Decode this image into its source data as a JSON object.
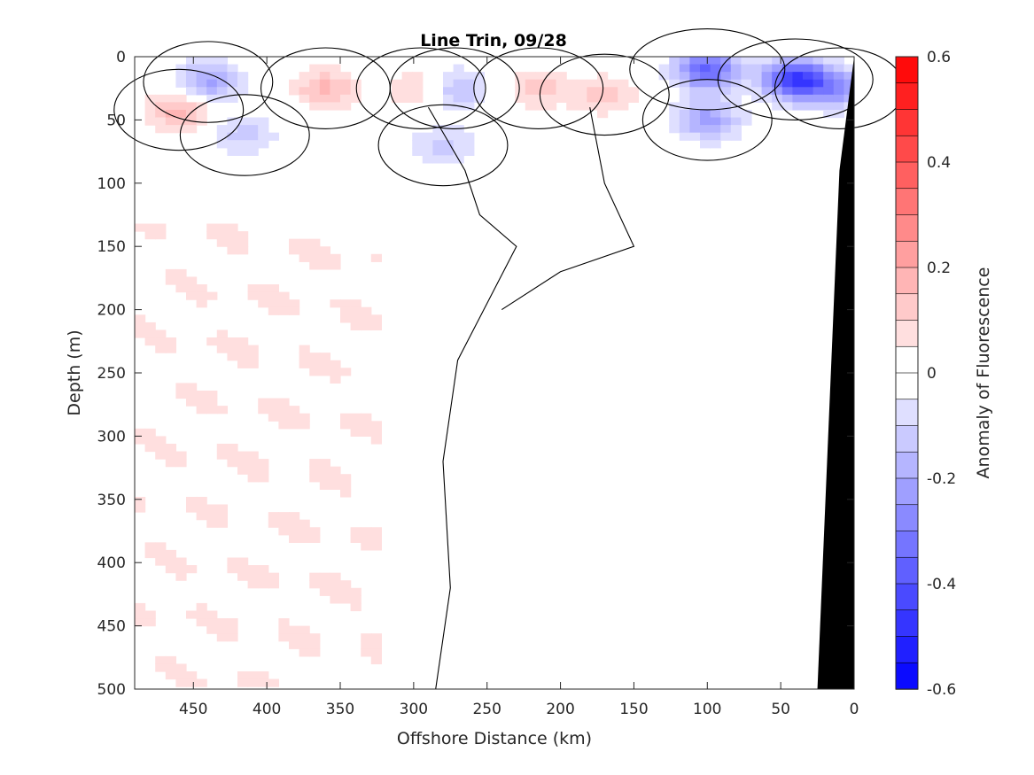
{
  "chart_data": {
    "type": "heatmap",
    "subtype": "filled-contour section",
    "title": "Line Trin, 09/28",
    "xlabel": "Offshore Distance (km)",
    "ylabel": "Depth (m)",
    "colorbar_label": "Anomaly of Fluorescence",
    "xlim": [
      490,
      0
    ],
    "ylim": [
      500,
      0
    ],
    "x_reversed": true,
    "y_reversed": true,
    "x_ticks": [
      "450",
      "400",
      "350",
      "300",
      "250",
      "200",
      "150",
      "100",
      "50",
      "0"
    ],
    "y_ticks": [
      "0",
      "50",
      "100",
      "150",
      "200",
      "250",
      "300",
      "350",
      "400",
      "450",
      "500"
    ],
    "colorbar_range": [
      -0.6,
      0.6
    ],
    "colorbar_ticks": [
      "0.6",
      "0.4",
      "0.2",
      "0",
      "-0.2",
      "-0.4",
      "-0.6"
    ],
    "colorbar_levels": 24,
    "colors": {
      "positive": "#ff0000",
      "negative": "#0000ff",
      "zero": "#ffffff",
      "bathymetry": "#000000",
      "contour": "#000000"
    },
    "grid": false,
    "contour_level": 0,
    "features": [
      {
        "x": 440,
        "y": 20,
        "value": -0.22
      },
      {
        "x": 360,
        "y": 25,
        "value": 0.16
      },
      {
        "x": 460,
        "y": 42,
        "value": 0.18
      },
      {
        "x": 415,
        "y": 62,
        "value": -0.12
      },
      {
        "x": 295,
        "y": 25,
        "value": 0.14
      },
      {
        "x": 272,
        "y": 25,
        "value": -0.18
      },
      {
        "x": 280,
        "y": 70,
        "value": -0.12
      },
      {
        "x": 215,
        "y": 25,
        "value": 0.12
      },
      {
        "x": 170,
        "y": 30,
        "value": 0.12
      },
      {
        "x": 100,
        "y": 10,
        "value": -0.36
      },
      {
        "x": 100,
        "y": 50,
        "value": -0.22
      },
      {
        "x": 40,
        "y": 18,
        "value": -0.46
      },
      {
        "x": 10,
        "y": 25,
        "value": -0.22
      }
    ],
    "bathymetry": [
      [
        25,
        500
      ],
      [
        10,
        90
      ],
      [
        0,
        0
      ]
    ]
  }
}
